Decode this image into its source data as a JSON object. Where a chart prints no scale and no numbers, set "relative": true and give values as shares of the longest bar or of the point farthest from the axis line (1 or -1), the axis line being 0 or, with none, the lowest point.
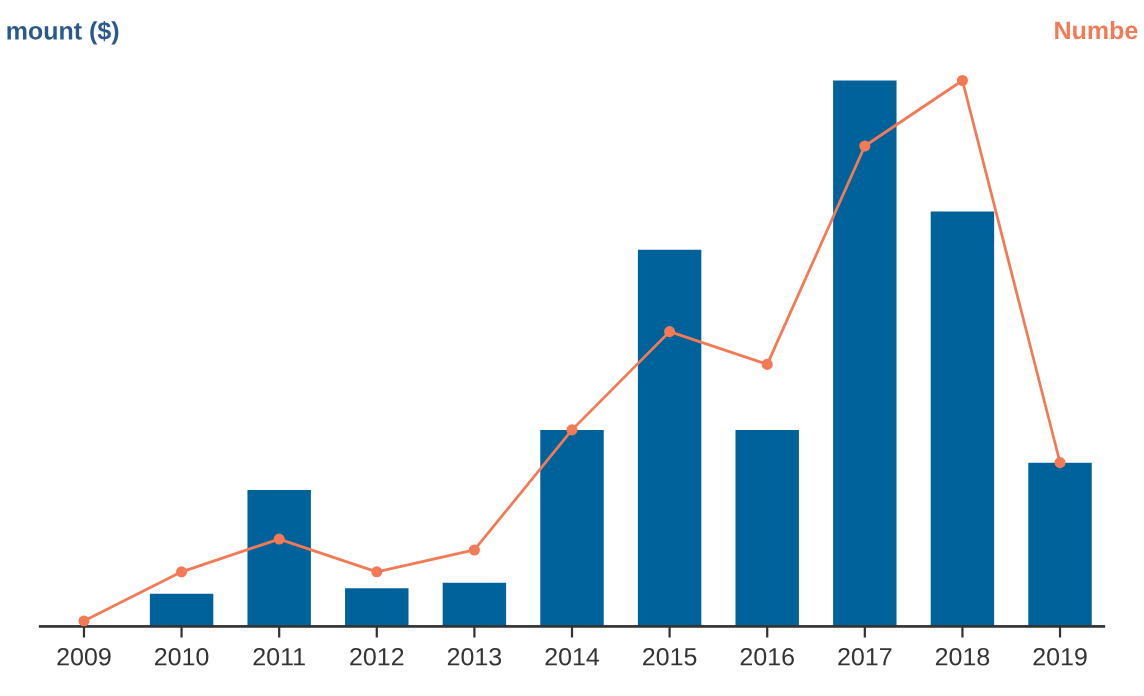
{
  "chart_data": {
    "type": "bar",
    "relative": true,
    "ylabel": "mount ($)",
    "y2label": "Numbe",
    "categories": [
      "2009",
      "2010",
      "2011",
      "2012",
      "2013",
      "2014",
      "2015",
      "2016",
      "2017",
      "2018",
      "2019"
    ],
    "series": [
      {
        "color": "#00629b",
        "values": [
          0,
          0.06,
          0.25,
          0.07,
          0.08,
          0.36,
          0.69,
          0.36,
          1,
          0.76,
          0.3
        ]
      },
      {
        "type": "line",
        "axis": "y2",
        "color": "#f47a55",
        "values": [
          0.01,
          0.1,
          0.16,
          0.1,
          0.14,
          0.36,
          0.54,
          0.48,
          0.88,
          1,
          0.3
        ]
      }
    ],
    "marker": "circle",
    "line_style": "solid",
    "grid": false,
    "legend": false
  }
}
